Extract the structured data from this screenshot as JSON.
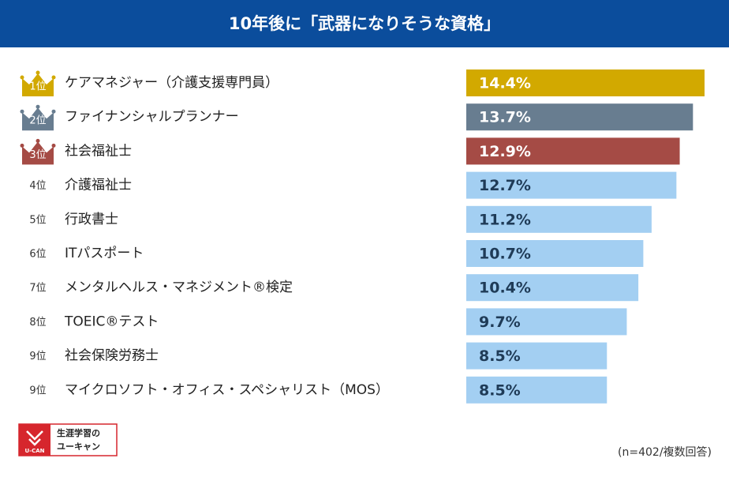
{
  "chart_data": {
    "type": "bar",
    "orientation": "horizontal",
    "title": "10年後に「武器になりそうな資格」",
    "ranks": [
      "1位",
      "2位",
      "3位",
      "4位",
      "5位",
      "6位",
      "7位",
      "8位",
      "9位",
      "9位"
    ],
    "categories": [
      "ケアマネジャー（介護支援専門員）",
      "ファイナンシャルプランナー",
      "社会福祉士",
      "介護福祉士",
      "行政書士",
      "ITパスポート",
      "メンタルヘルス・マネジメント®検定",
      "TOEIC®テスト",
      "社会保険労務士",
      "マイクロソフト・オフィス・スペシャリスト（MOS）"
    ],
    "values": [
      14.4,
      13.7,
      12.9,
      12.7,
      11.2,
      10.7,
      10.4,
      9.7,
      8.5,
      8.5
    ],
    "value_labels": [
      "14.4%",
      "13.7%",
      "12.9%",
      "12.7%",
      "11.2%",
      "10.7%",
      "10.4%",
      "9.7%",
      "8.5%",
      "8.5%"
    ],
    "colors": [
      "#d2a900",
      "#687d90",
      "#a54b45",
      "#a3cff2",
      "#a3cff2",
      "#a3cff2",
      "#a3cff2",
      "#a3cff2",
      "#a3cff2",
      "#a3cff2"
    ],
    "note": "(n=402/複数回答)"
  },
  "logo": {
    "mark": "U-CAN",
    "line1": "生涯学習の",
    "line2": "ユーキャン"
  }
}
